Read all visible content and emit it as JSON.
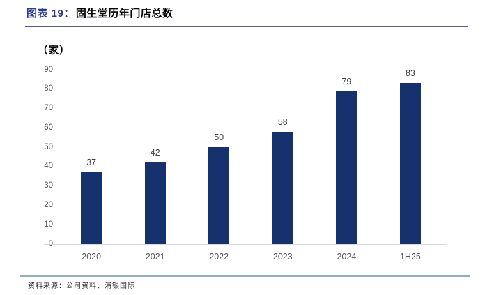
{
  "header": {
    "title_prefix": "图表 19：",
    "title_main": "固生堂历年门店总数"
  },
  "chart_data": {
    "type": "bar",
    "title": "固生堂历年门店总数",
    "unit_label": "（家）",
    "categories": [
      "2020",
      "2021",
      "2022",
      "2023",
      "2024",
      "1H25"
    ],
    "values": [
      37,
      42,
      50,
      58,
      79,
      83
    ],
    "ylim": [
      0,
      90
    ],
    "yticks": [
      0,
      10,
      20,
      30,
      40,
      50,
      60,
      70,
      80,
      90
    ],
    "grid": false,
    "legend": false,
    "data_labels_shown": true,
    "bar_color": "#15316E"
  },
  "footer": {
    "source_label": "资料来源：公司资料、浦银国际"
  },
  "colors": {
    "bar": "#15316E",
    "title-accent": "#2C3A8C",
    "title-main": "#000000",
    "header-rule": "#5D5C8B",
    "footer-rule": "#93ABD1",
    "axis-line": "#D9D9D9",
    "tick-label": "#595959",
    "data-label": "#404040"
  }
}
